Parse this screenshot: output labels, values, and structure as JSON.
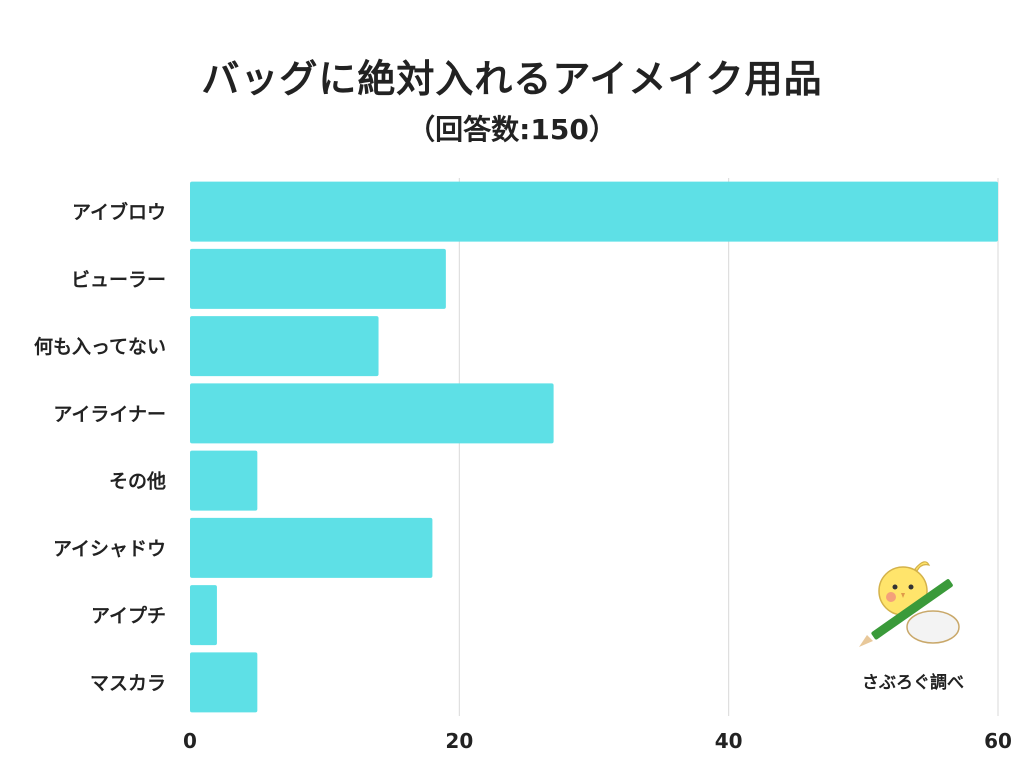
{
  "header": {
    "title": "バッグに絶対入れるアイメイク用品",
    "subtitle": "（回答数:150）"
  },
  "credit": "さぶろぐ調べ",
  "colors": {
    "bar": "#5EE0E6",
    "grid": "#D9D9D9",
    "text": "#222222"
  },
  "icons": {
    "mascot": "bird-with-pencil-icon"
  },
  "chart_data": {
    "type": "bar",
    "orientation": "horizontal",
    "categories": [
      "アイブロウ",
      "ビューラー",
      "何も入ってない",
      "アイライナー",
      "その他",
      "アイシャドウ",
      "アイプチ",
      "マスカラ"
    ],
    "values": [
      60,
      19,
      14,
      27,
      5,
      18,
      2,
      5
    ],
    "xlim": [
      0,
      60
    ],
    "xticks": [
      0,
      20,
      40,
      60
    ],
    "grid": true,
    "legend": "none"
  }
}
